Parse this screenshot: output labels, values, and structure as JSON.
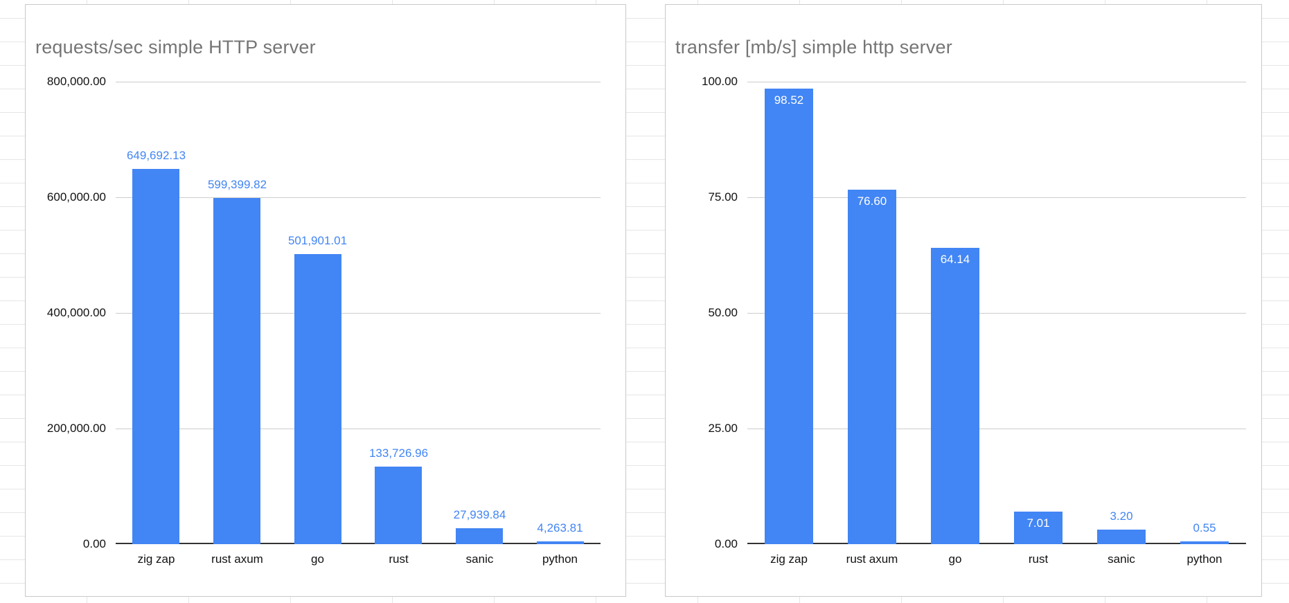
{
  "page": {
    "background_color": "#ffffff",
    "grid_color": "#e4e6e4"
  },
  "chart_data": [
    {
      "type": "bar",
      "title": "requests/sec simple HTTP server",
      "categories": [
        "zig zap",
        "rust axum",
        "go",
        "rust",
        "sanic",
        "python"
      ],
      "values": [
        649692.13,
        599399.82,
        501901.01,
        133726.96,
        27939.84,
        4263.81
      ],
      "value_labels": [
        "649,692.13",
        "599,399.82",
        "501,901.01",
        "133,726.96",
        "27,939.84",
        "4,263.81"
      ],
      "label_inside": [
        false,
        false,
        false,
        false,
        false,
        false
      ],
      "y_ticks": [
        {
          "v": 0,
          "label": "0.00"
        },
        {
          "v": 200000,
          "label": "200,000.00"
        },
        {
          "v": 400000,
          "label": "400,000.00"
        },
        {
          "v": 600000,
          "label": "600,000.00"
        },
        {
          "v": 800000,
          "label": "800,000.00"
        }
      ],
      "ylim": [
        0,
        800000
      ],
      "xlabel": "",
      "ylabel": "",
      "legend": "none",
      "grid": true,
      "bar_color": "#4285f4",
      "data_label_color": "#4285f4",
      "title_color": "#757575"
    },
    {
      "type": "bar",
      "title": "transfer [mb/s] simple http server",
      "categories": [
        "zig zap",
        "rust axum",
        "go",
        "rust",
        "sanic",
        "python"
      ],
      "values": [
        98.52,
        76.6,
        64.14,
        7.01,
        3.2,
        0.55
      ],
      "value_labels": [
        "98.52",
        "76.60",
        "64.14",
        "7.01",
        "3.20",
        "0.55"
      ],
      "label_inside": [
        true,
        true,
        true,
        true,
        false,
        false
      ],
      "y_ticks": [
        {
          "v": 0,
          "label": "0.00"
        },
        {
          "v": 25,
          "label": "25.00"
        },
        {
          "v": 50,
          "label": "50.00"
        },
        {
          "v": 75,
          "label": "75.00"
        },
        {
          "v": 100,
          "label": "100.00"
        }
      ],
      "ylim": [
        0,
        100
      ],
      "xlabel": "",
      "ylabel": "",
      "legend": "none",
      "grid": true,
      "bar_color": "#4285f4",
      "data_label_color": "#4285f4",
      "title_color": "#757575"
    }
  ]
}
